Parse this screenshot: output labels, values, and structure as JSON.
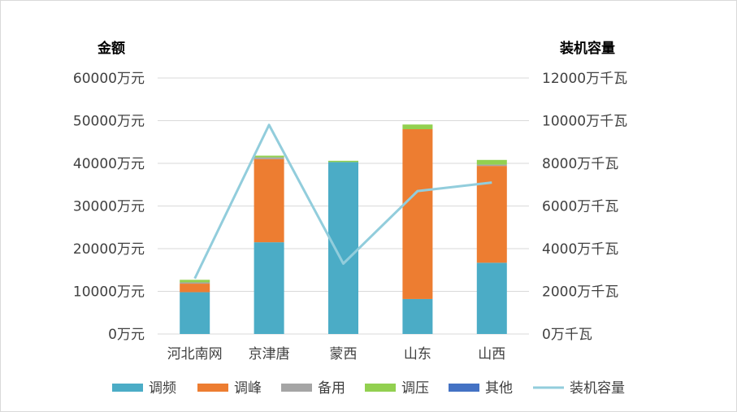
{
  "chart_data": {
    "type": "bar",
    "stacked": true,
    "categories": [
      "河北南网",
      "京津唐",
      "蒙西",
      "山东",
      "山西"
    ],
    "series": [
      {
        "name": "调频",
        "values": [
          9800,
          21500,
          40300,
          8200,
          16700
        ],
        "color": "#4bacc6"
      },
      {
        "name": "调峰",
        "values": [
          2000,
          19500,
          0,
          39800,
          22700
        ],
        "color": "#ed7d31"
      },
      {
        "name": "备用",
        "values": [
          300,
          400,
          0,
          0,
          300
        ],
        "color": "#a5a5a5"
      },
      {
        "name": "调压",
        "values": [
          600,
          400,
          300,
          1100,
          1100
        ],
        "color": "#92d050"
      },
      {
        "name": "其他",
        "values": [
          0,
          0,
          0,
          0,
          0
        ],
        "color": "#4472c4"
      }
    ],
    "line_series": {
      "name": "装机容量",
      "values": [
        2600,
        9800,
        3300,
        6700,
        7100
      ],
      "color": "#92cddc",
      "axis": "right"
    },
    "left_axis": {
      "title": "金额",
      "ylim": [
        0,
        60000
      ],
      "ticks": [
        "0万元",
        "10000万元",
        "20000万元",
        "30000万元",
        "40000万元",
        "50000万元",
        "60000万元"
      ]
    },
    "right_axis": {
      "title": "装机容量",
      "ylim": [
        0,
        12000
      ],
      "ticks": [
        "0万千瓦",
        "2000万千瓦",
        "4000万千瓦",
        "6000万千瓦",
        "8000万千瓦",
        "10000万千瓦",
        "12000万千瓦"
      ]
    },
    "legend": {
      "placement": "bottom",
      "items": [
        "调频",
        "调峰",
        "备用",
        "调压",
        "其他",
        "装机容量"
      ]
    },
    "grid": true,
    "gridline_color": "#d9d9d9"
  }
}
